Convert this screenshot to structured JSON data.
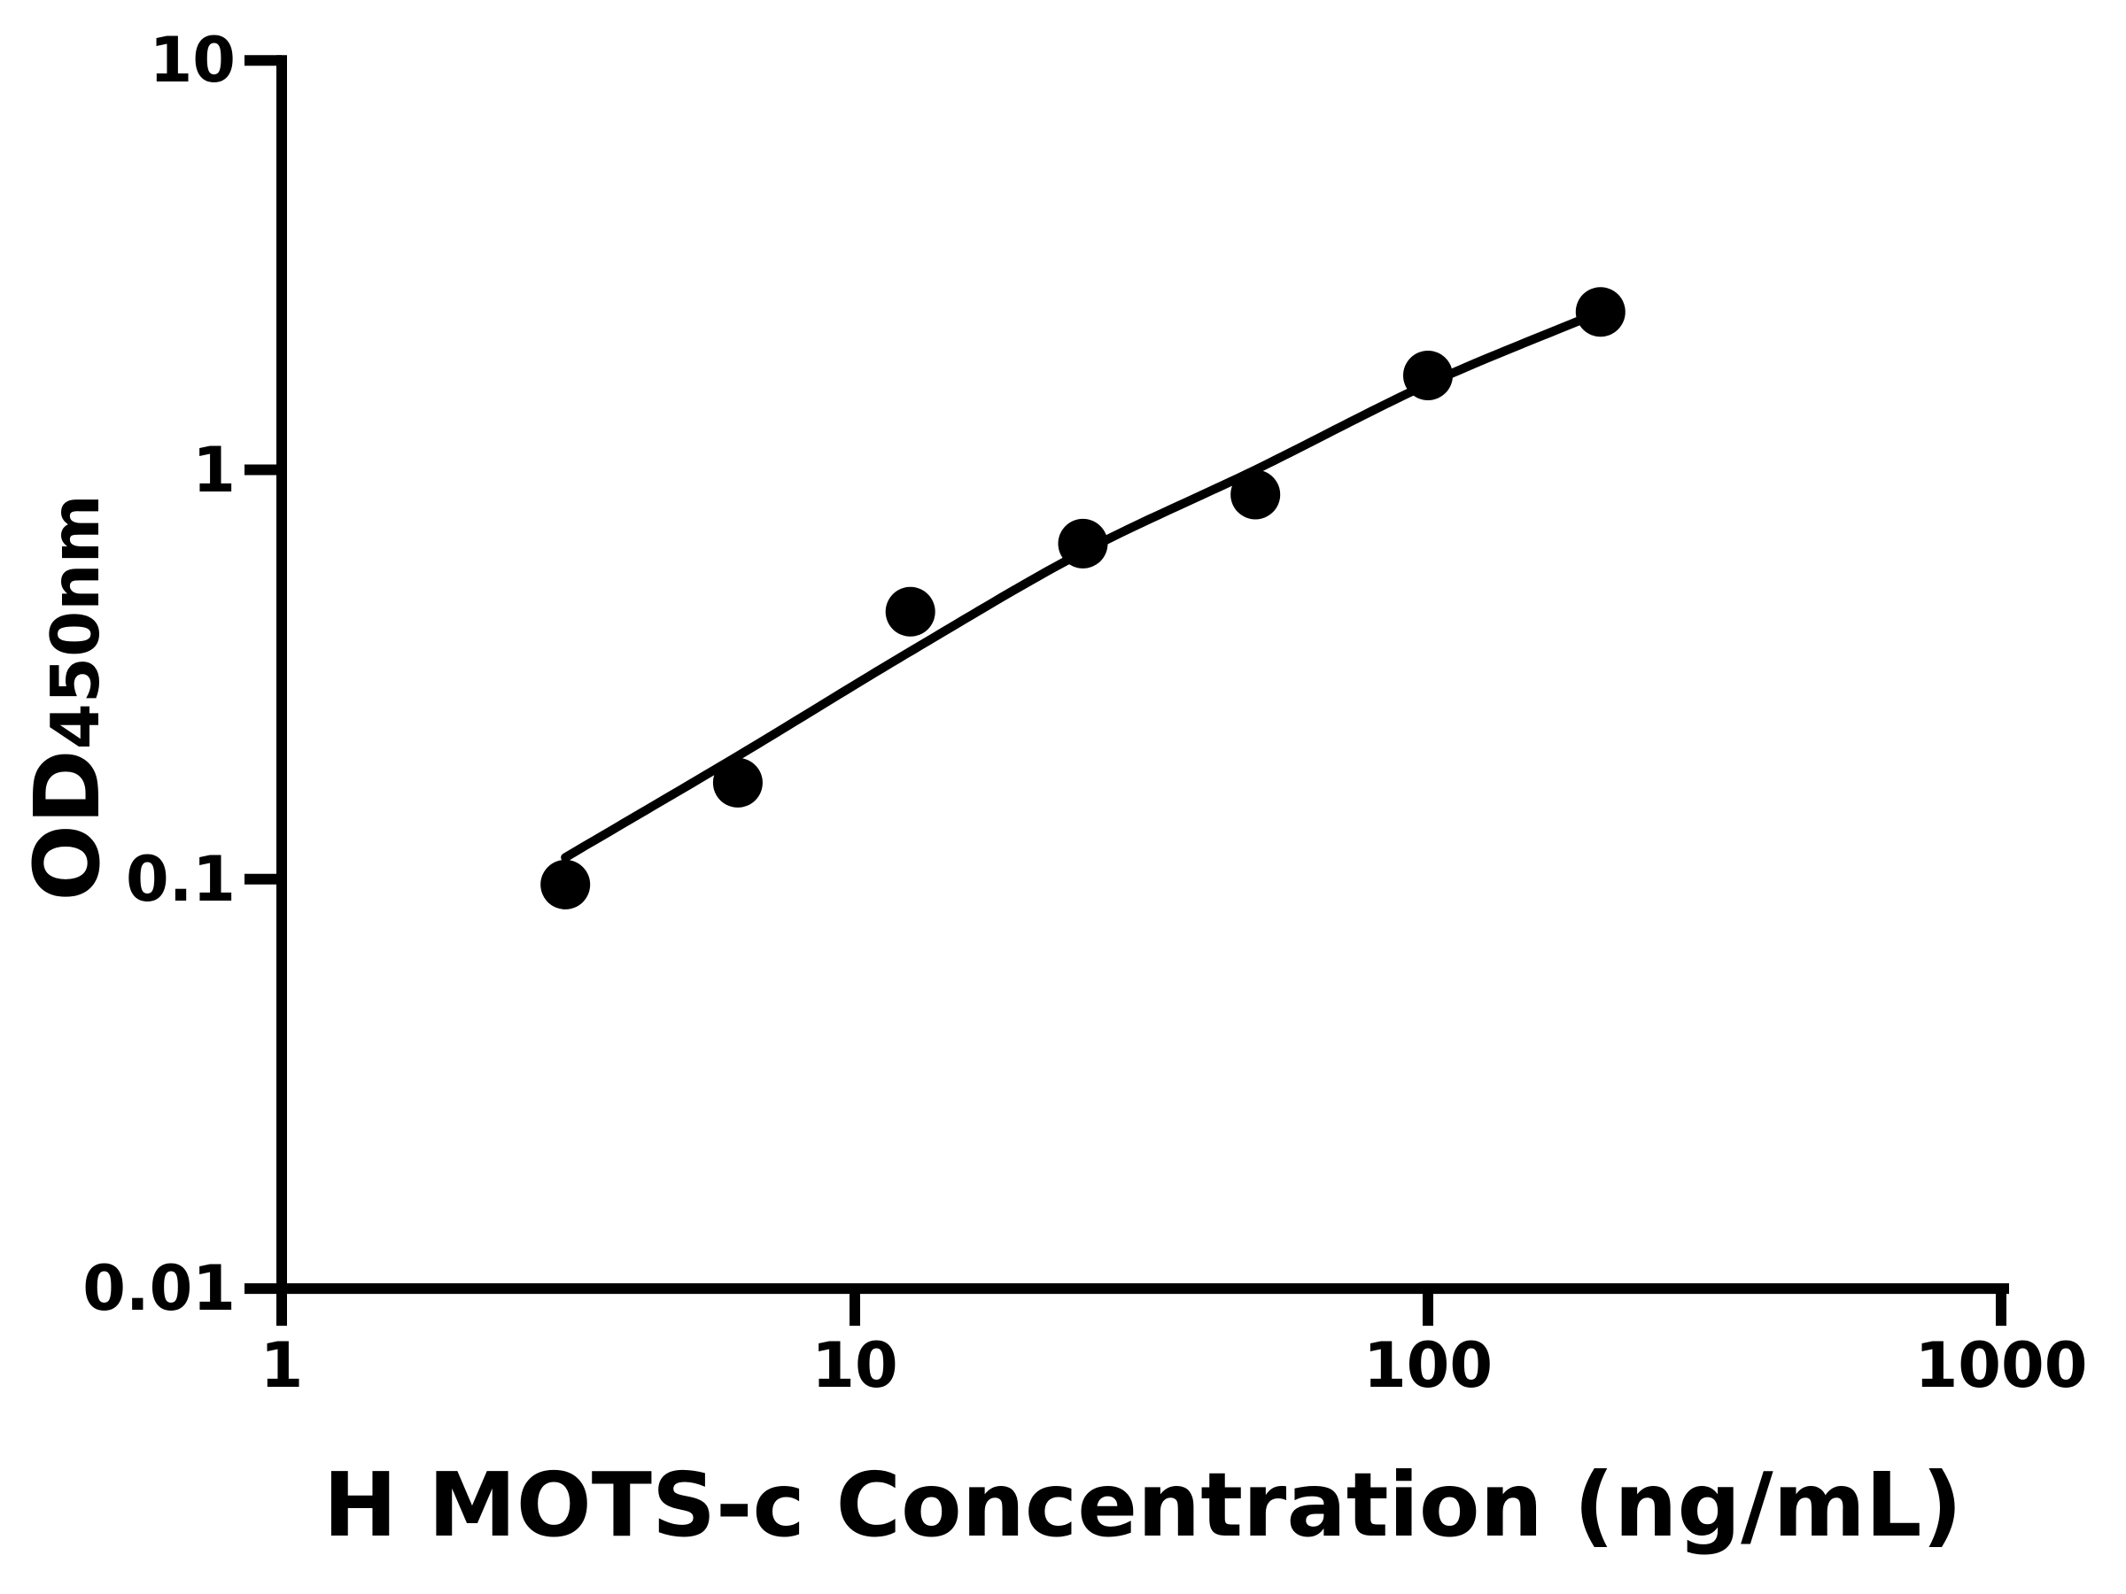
{
  "figure": {
    "background_color": "#ffffff",
    "ink_color": "#000000"
  },
  "chart_data": {
    "type": "scatter",
    "title": "",
    "xlabel": "H MOTS-c Concentration (ng/mL)",
    "ylabel_main": "OD",
    "ylabel_sub": "450nm",
    "x_scale": "log",
    "y_scale": "log",
    "xlim": [
      1,
      1000
    ],
    "ylim": [
      0.01,
      10
    ],
    "grid": false,
    "legend": null,
    "x_ticks": [
      {
        "value": 1,
        "label": "1"
      },
      {
        "value": 10,
        "label": "10"
      },
      {
        "value": 100,
        "label": "100"
      },
      {
        "value": 1000,
        "label": "1000"
      }
    ],
    "y_ticks": [
      {
        "value": 10,
        "label": "10"
      },
      {
        "value": 1,
        "label": "1"
      },
      {
        "value": 0.1,
        "label": "0.1"
      },
      {
        "value": 0.01,
        "label": "0.01"
      }
    ],
    "series": [
      {
        "name": "standard-points",
        "type": "scatter",
        "marker": "filled-circle",
        "color": "#000000",
        "points": [
          {
            "x": 3.125,
            "y": 0.097
          },
          {
            "x": 6.25,
            "y": 0.172
          },
          {
            "x": 12.5,
            "y": 0.45
          },
          {
            "x": 25,
            "y": 0.66
          },
          {
            "x": 50,
            "y": 0.87
          },
          {
            "x": 100,
            "y": 1.7
          },
          {
            "x": 200,
            "y": 2.43
          }
        ]
      },
      {
        "name": "fit-curve",
        "type": "line",
        "color": "#000000",
        "points": [
          {
            "x": 3.125,
            "y": 0.113
          },
          {
            "x": 6.25,
            "y": 0.2
          },
          {
            "x": 12.5,
            "y": 0.36
          },
          {
            "x": 25,
            "y": 0.63
          },
          {
            "x": 50,
            "y": 1.0
          },
          {
            "x": 100,
            "y": 1.62
          },
          {
            "x": 200,
            "y": 2.43
          }
        ]
      }
    ]
  }
}
